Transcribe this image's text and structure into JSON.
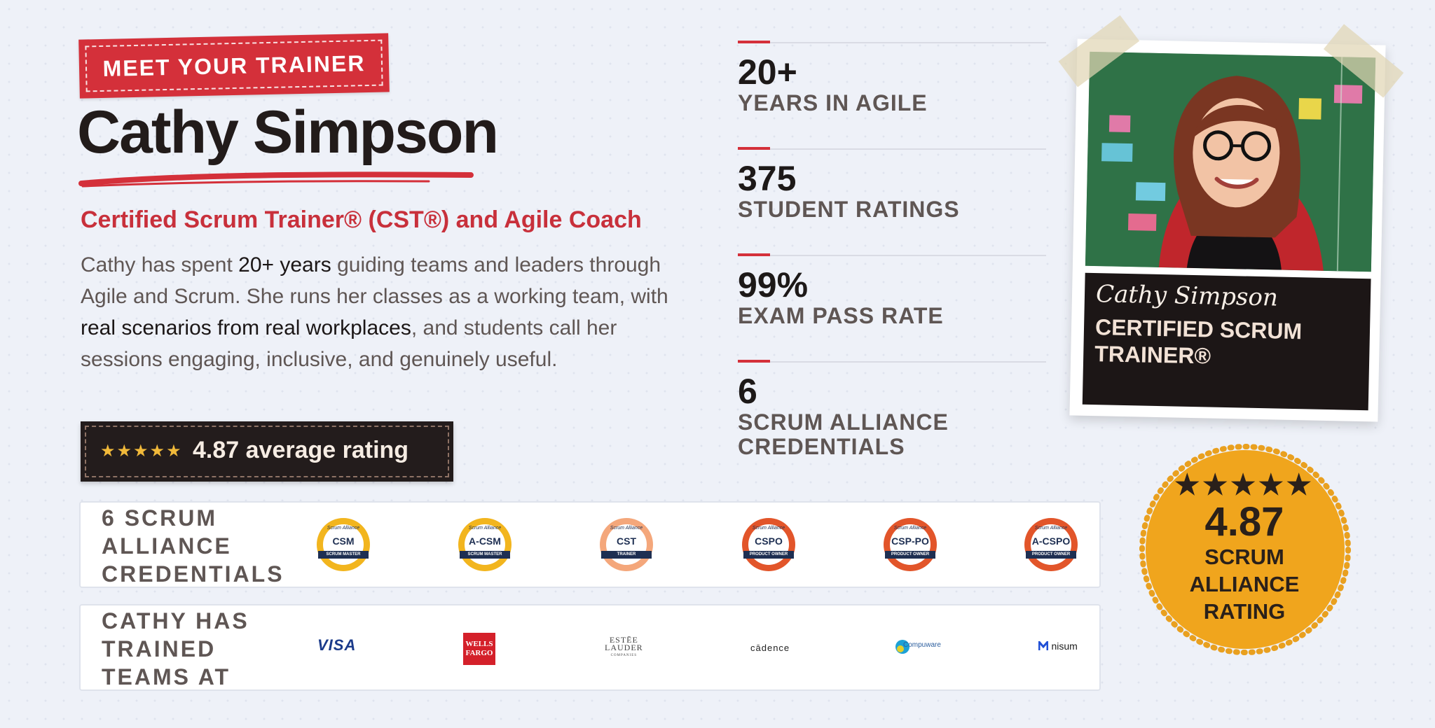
{
  "tag": "MEET YOUR TRAINER",
  "name": "Cathy Simpson",
  "subtitle": "Certified Scrum Trainer® (CST®) and Agile Coach",
  "bio": {
    "p1": "Cathy has spent ",
    "b1": "20+ years",
    "p2": " guiding teams and leaders through Agile and Scrum. She runs her classes as a working team, with ",
    "b2": "real scenarios from real workplaces",
    "p3": ", and students call her sessions engaging, inclusive, and genuinely useful."
  },
  "rating_box": {
    "stars": "★★★★★",
    "text": "4.87 average rating"
  },
  "stats": [
    {
      "value": "20+",
      "label": "YEARS IN AGILE"
    },
    {
      "value": "375",
      "label": "STUDENT RATINGS"
    },
    {
      "value": "99%",
      "label": "EXAM PASS RATE"
    },
    {
      "value": "6",
      "label": "SCRUM ALLIANCE CREDENTIALS"
    }
  ],
  "credentials": {
    "label": [
      "6 SCRUM",
      "ALLIANCE",
      "CREDENTIALS"
    ],
    "badges": [
      {
        "code": "CSM",
        "ribbon": "SCRUM MASTER",
        "brand": "Scrum Alliance",
        "color": "#f2b51e"
      },
      {
        "code": "A-CSM",
        "ribbon": "SCRUM MASTER",
        "brand": "Scrum Alliance",
        "color": "#f2b51e"
      },
      {
        "code": "CST",
        "ribbon": "TRAINER",
        "brand": "Scrum Alliance",
        "color": "#f4a77b"
      },
      {
        "code": "CSPO",
        "ribbon": "PRODUCT OWNER",
        "brand": "Scrum Alliance",
        "color": "#e2552a"
      },
      {
        "code": "CSP-PO",
        "ribbon": "PRODUCT OWNER",
        "brand": "Scrum Alliance",
        "color": "#e2552a"
      },
      {
        "code": "A-CSPO",
        "ribbon": "PRODUCT OWNER",
        "brand": "Scrum Alliance",
        "color": "#e2552a"
      }
    ]
  },
  "clients": {
    "label": [
      "CATHY HAS",
      "TRAINED",
      "TEAMS AT"
    ],
    "logos": [
      {
        "name": "VISA"
      },
      {
        "name": "WELLS",
        "name2": "FARGO"
      },
      {
        "name": "ESTĒE",
        "name2": "LAUDER",
        "name3": "COMPANIES"
      },
      {
        "name": "cādence"
      },
      {
        "name": "Compuware"
      },
      {
        "name": "nisum"
      }
    ]
  },
  "photo_card": {
    "name": "Cathy Simpson",
    "title": "CERTIFIED SCRUM TRAINER®"
  },
  "seal": {
    "stars": "★★★★★",
    "value": "4.87",
    "line1": "SCRUM",
    "line2": "ALLIANCE",
    "line3": "RATING"
  }
}
